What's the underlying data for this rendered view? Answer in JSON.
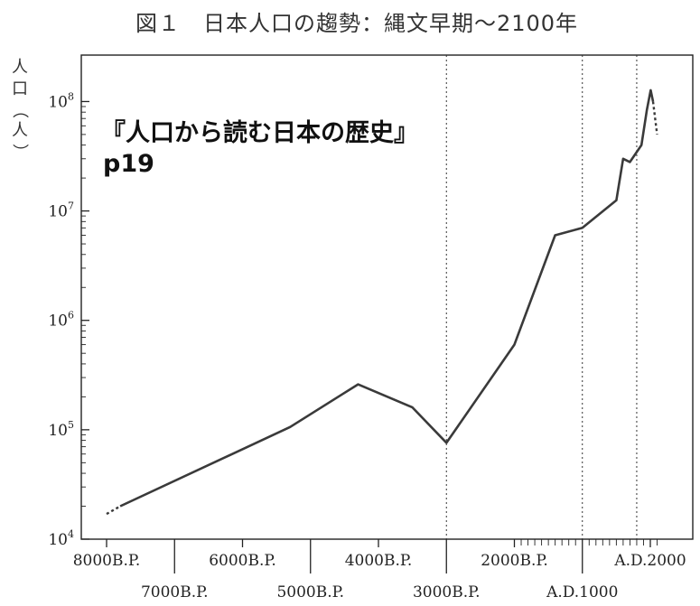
{
  "title": "図１　日本人口の趨勢：縄文早期〜2100年",
  "ylabel": "人口（人）",
  "overlay": {
    "line1": "『人口から読む日本の歴史』",
    "line2": "p19"
  },
  "chart_data": {
    "type": "line",
    "title": "図１　日本人口の趨勢：縄文早期〜2100年",
    "xlabel": "",
    "ylabel": "人口（人）",
    "yscale": "log",
    "ylim": [
      10000,
      200000000
    ],
    "xlim": [
      -6300,
      2150
    ],
    "y_tick_labels": [
      "10^4",
      "10^5",
      "10^6",
      "10^7",
      "10^8"
    ],
    "x_tick_labels": [
      {
        "year": -6000,
        "label": "8000B.P.",
        "row": "upper"
      },
      {
        "year": -5000,
        "label": "7000B.P.",
        "row": "lower"
      },
      {
        "year": -4000,
        "label": "6000B.P.",
        "row": "upper"
      },
      {
        "year": -3000,
        "label": "5000B.P.",
        "row": "lower"
      },
      {
        "year": -2000,
        "label": "4000B.P.",
        "row": "upper"
      },
      {
        "year": -1000,
        "label": "3000B.P.",
        "row": "lower"
      },
      {
        "year": 0,
        "label": "2000B.P.",
        "row": "upper"
      },
      {
        "year": 1000,
        "label": "A.D.1000",
        "row": "lower"
      },
      {
        "year": 2000,
        "label": "A.D.2000",
        "row": "upper"
      }
    ],
    "dotted_vertical_lines": [
      -1000,
      1000,
      1800
    ],
    "series": [
      {
        "name": "",
        "x": [
          -5800,
          -3300,
          -2300,
          -1500,
          -1000,
          0,
          600,
          1000,
          1500,
          1600,
          1700,
          1870,
          1950,
          2005,
          2040
        ],
        "y": [
          20000,
          106000,
          260000,
          160000,
          76000,
          600000,
          6000000,
          7000000,
          12500000,
          30000000,
          28000000,
          40000000,
          84000000,
          127000000,
          100000000
        ]
      }
    ],
    "dashed_segments": [
      {
        "x": [
          -6000,
          -5800
        ],
        "y": [
          17000,
          20000
        ]
      },
      {
        "x": [
          2040,
          2100
        ],
        "y": [
          100000000,
          50000000
        ]
      }
    ]
  }
}
